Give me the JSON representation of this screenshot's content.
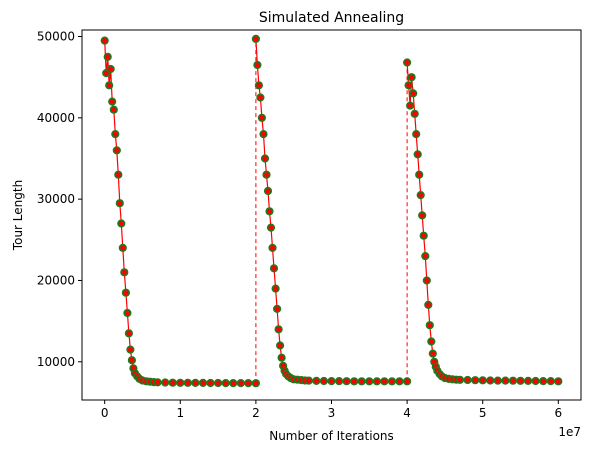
{
  "chart_data": {
    "type": "scatter",
    "title": "Simulated Annealing",
    "xlabel": "Number of Iterations",
    "ylabel": "Tour Length",
    "x_offset_label": "1e7",
    "x_scale": 10000000,
    "xlim": [
      -3000000,
      63000000
    ],
    "ylim": [
      5300,
      50800
    ],
    "xticks": [
      0,
      10000000,
      20000000,
      30000000,
      40000000,
      50000000,
      60000000
    ],
    "xtick_labels": [
      "0",
      "1",
      "2",
      "3",
      "4",
      "5",
      "6"
    ],
    "yticks": [
      10000,
      20000,
      30000,
      40000,
      50000
    ],
    "ytick_labels": [
      "10000",
      "20000",
      "30000",
      "40000",
      "50000"
    ],
    "grid": false,
    "marker_face_color": "#ff0000",
    "marker_edge_color": "#1f7a1f",
    "line_color": "#ff0000",
    "restart_line_style": "dashed",
    "series": [
      {
        "x": [
          0,
          200000,
          400000,
          600000,
          800000,
          1000000,
          1200000,
          1400000,
          1600000,
          1800000,
          2000000,
          2200000,
          2400000,
          2600000,
          2800000,
          3000000,
          3200000,
          3400000,
          3600000,
          3800000,
          4000000,
          4300000,
          4600000,
          5000000,
          5500000,
          6000000,
          6500000,
          7000000,
          8000000,
          9000000,
          10000000,
          11000000,
          12000000,
          13000000,
          14000000,
          15000000,
          16000000,
          17000000,
          18000000,
          19000000,
          20000000
        ],
        "y": [
          49500,
          45500,
          47500,
          44000,
          46000,
          42000,
          41000,
          38000,
          36000,
          33000,
          29500,
          27000,
          24000,
          21000,
          18500,
          16000,
          13500,
          11500,
          10200,
          9200,
          8600,
          8200,
          7900,
          7700,
          7600,
          7550,
          7500,
          7480,
          7450,
          7430,
          7420,
          7410,
          7400,
          7400,
          7390,
          7390,
          7380,
          7380,
          7380,
          7375,
          7370
        ]
      },
      {
        "x": [
          20000000,
          20200000,
          20400000,
          20600000,
          20800000,
          21000000,
          21200000,
          21400000,
          21600000,
          21800000,
          22000000,
          22200000,
          22400000,
          22600000,
          22800000,
          23000000,
          23200000,
          23400000,
          23600000,
          23800000,
          24000000,
          24300000,
          24600000,
          25000000,
          25500000,
          26000000,
          26500000,
          27000000,
          28000000,
          29000000,
          30000000,
          31000000,
          32000000,
          33000000,
          34000000,
          35000000,
          36000000,
          37000000,
          38000000,
          39000000,
          40000000
        ],
        "y": [
          49700,
          46500,
          44000,
          42500,
          40000,
          38000,
          35000,
          33000,
          31000,
          28500,
          26500,
          24000,
          21500,
          19000,
          16500,
          14000,
          12000,
          10500,
          9500,
          8900,
          8500,
          8200,
          8000,
          7850,
          7800,
          7750,
          7700,
          7680,
          7650,
          7640,
          7630,
          7620,
          7610,
          7600,
          7600,
          7600,
          7600,
          7600,
          7600,
          7600,
          7600
        ]
      },
      {
        "x": [
          40000000,
          40200000,
          40400000,
          40600000,
          40800000,
          41000000,
          41200000,
          41400000,
          41600000,
          41800000,
          42000000,
          42200000,
          42400000,
          42600000,
          42800000,
          43000000,
          43200000,
          43400000,
          43600000,
          43800000,
          44000000,
          44300000,
          44600000,
          45000000,
          45500000,
          46000000,
          46500000,
          47000000,
          48000000,
          49000000,
          50000000,
          51000000,
          52000000,
          53000000,
          54000000,
          55000000,
          56000000,
          57000000,
          58000000,
          59000000,
          60000000
        ],
        "y": [
          46800,
          44000,
          41500,
          45000,
          43000,
          40500,
          38000,
          35500,
          33000,
          30500,
          28000,
          25500,
          23000,
          20000,
          17000,
          14500,
          12500,
          11000,
          10000,
          9400,
          8900,
          8500,
          8200,
          8000,
          7900,
          7850,
          7800,
          7780,
          7760,
          7740,
          7720,
          7700,
          7690,
          7680,
          7670,
          7660,
          7650,
          7640,
          7630,
          7620,
          7600
        ]
      }
    ]
  }
}
